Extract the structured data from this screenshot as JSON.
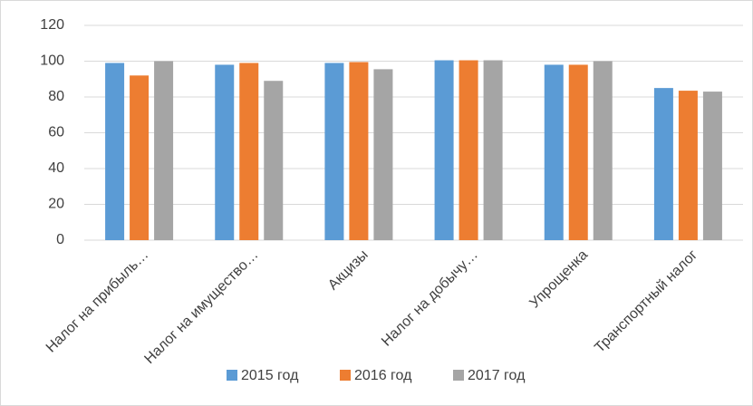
{
  "chart_data": {
    "type": "bar",
    "categories": [
      "Налог на прибыль…",
      "Налог на имущество…",
      "Акцизы",
      "Налог на добычу…",
      "Упрощенка",
      "Транспортный налог"
    ],
    "series": [
      {
        "name": "2015 год",
        "color": "#5b9bd5",
        "values": [
          99,
          98,
          99,
          100.5,
          98,
          85
        ]
      },
      {
        "name": "2016 год",
        "color": "#ed7d31",
        "values": [
          92,
          99,
          99.5,
          100.5,
          98,
          83.5
        ]
      },
      {
        "name": "2017 год",
        "color": "#a5a5a5",
        "values": [
          100,
          89,
          95.5,
          100.5,
          100,
          83
        ]
      }
    ],
    "ylim": [
      0,
      120
    ],
    "yticks": [
      0,
      20,
      40,
      60,
      80,
      100,
      120
    ],
    "grid": true,
    "legend": "bottom"
  }
}
